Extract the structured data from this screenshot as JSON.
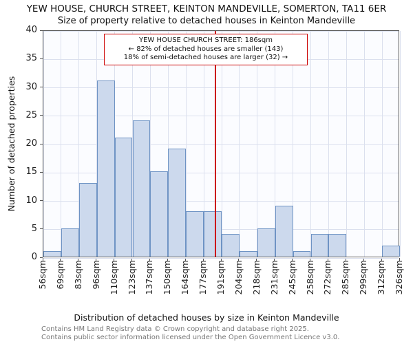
{
  "footer": {
    "line1": "Contains HM Land Registry data © Crown copyright and database right 2025.",
    "line2": "Contains public sector information licensed under the Open Government Licence v3.0."
  },
  "chart_data": {
    "type": "bar",
    "title": "YEW HOUSE, CHURCH STREET, KEINTON MANDEVILLE, SOMERTON, TA11 6ER",
    "subtitle": "Size of property relative to detached houses in Keinton Mandeville",
    "xlabel": "Distribution of detached houses by size in Keinton Mandeville",
    "ylabel": "Number of detached properties",
    "tick_labels": [
      "56sqm",
      "69sqm",
      "83sqm",
      "96sqm",
      "110sqm",
      "123sqm",
      "137sqm",
      "150sqm",
      "164sqm",
      "177sqm",
      "191sqm",
      "204sqm",
      "218sqm",
      "231sqm",
      "245sqm",
      "258sqm",
      "272sqm",
      "285sqm",
      "299sqm",
      "312sqm",
      "326sqm"
    ],
    "bin_edges_sqm": [
      56,
      69,
      83,
      96,
      110,
      123,
      137,
      150,
      164,
      177,
      191,
      204,
      218,
      231,
      245,
      258,
      272,
      285,
      299,
      312,
      326
    ],
    "values": [
      1,
      5,
      13,
      31,
      21,
      24,
      15,
      19,
      8,
      8,
      4,
      1,
      5,
      9,
      1,
      4,
      4,
      0,
      0,
      2
    ],
    "ylim": [
      0,
      40
    ],
    "ytick_step": 5,
    "grid": "on",
    "legend": "none",
    "colors": {
      "bar_fill": "#ccd9ed",
      "bar_border": "#6e93c4"
    },
    "marker": {
      "value_sqm": 186,
      "color": "#cc0000",
      "label_lines": [
        "YEW HOUSE CHURCH STREET: 186sqm",
        "← 82% of detached houses are smaller (143)",
        "18% of semi-detached houses are larger (32) →"
      ]
    }
  }
}
